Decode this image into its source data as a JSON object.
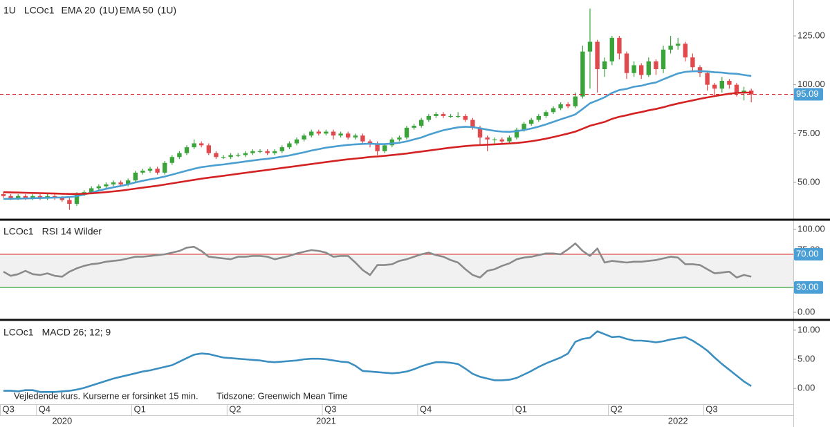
{
  "chart_data": [
    {
      "type": "candlestick",
      "header": [
        "1U",
        "LCOc1"
      ],
      "header_colors": [
        "#111111",
        "#111111"
      ],
      "up_color": "#3aa33a",
      "down_color": "#e0494d",
      "open": [
        44,
        43,
        42,
        43,
        42,
        43,
        42,
        43,
        42,
        41,
        39,
        44,
        45,
        47,
        48,
        49,
        50,
        49,
        51,
        55,
        56,
        57,
        55,
        60,
        63,
        65,
        68,
        70,
        69,
        65,
        63,
        63,
        64,
        64,
        65,
        66,
        66,
        65,
        66,
        68,
        70,
        72,
        74,
        76,
        75,
        76,
        74,
        75,
        73,
        74,
        71,
        70,
        66,
        69,
        72,
        73,
        78,
        79,
        82,
        84,
        85,
        84,
        84,
        84,
        82,
        78,
        73,
        72,
        72,
        71,
        73,
        77,
        80,
        82,
        84,
        86,
        88,
        90,
        89,
        94,
        117,
        122,
        108,
        112,
        124,
        116,
        106,
        110,
        105,
        112,
        108,
        118,
        120,
        121,
        114,
        109,
        106,
        100,
        98,
        102,
        100,
        96,
        97
      ],
      "high": [
        45,
        44,
        44,
        44,
        44,
        44,
        44,
        44,
        43,
        42,
        45,
        46,
        48,
        49,
        50,
        51,
        51,
        52,
        56,
        57,
        58,
        58,
        61,
        64,
        66,
        69,
        72,
        71,
        70,
        66,
        64,
        65,
        65,
        66,
        67,
        67,
        67,
        67,
        69,
        71,
        73,
        75,
        77,
        77,
        77,
        77,
        76,
        76,
        75,
        75,
        72,
        71,
        70,
        73,
        74,
        79,
        80,
        83,
        85,
        86,
        86,
        85,
        86,
        85,
        83,
        79,
        74,
        73,
        73,
        74,
        78,
        81,
        83,
        85,
        87,
        89,
        91,
        91,
        96,
        120,
        139,
        123,
        114,
        125,
        125,
        117,
        112,
        111,
        114,
        113,
        120,
        125,
        124,
        122,
        116,
        110,
        107,
        101,
        104,
        103,
        101,
        99,
        98
      ],
      "low": [
        42,
        41,
        41,
        41,
        41,
        41,
        41,
        41,
        40,
        36,
        38,
        43,
        44,
        46,
        47,
        48,
        48,
        48,
        50,
        54,
        55,
        54,
        54,
        59,
        62,
        64,
        67,
        68,
        64,
        62,
        62,
        62,
        63,
        63,
        64,
        65,
        64,
        64,
        65,
        67,
        69,
        71,
        73,
        74,
        74,
        72,
        73,
        72,
        72,
        70,
        68,
        64,
        65,
        68,
        71,
        72,
        77,
        78,
        81,
        83,
        83,
        83,
        83,
        81,
        77,
        69,
        66,
        70,
        70,
        70,
        72,
        76,
        79,
        81,
        83,
        85,
        87,
        88,
        88,
        93,
        98,
        96,
        104,
        110,
        113,
        103,
        104,
        103,
        104,
        105,
        106,
        116,
        118,
        112,
        107,
        104,
        97,
        94,
        96,
        98,
        94,
        92,
        91
      ],
      "close": [
        43,
        42,
        43,
        42,
        43,
        42,
        43,
        42,
        41,
        39,
        44,
        45,
        47,
        48,
        49,
        50,
        49,
        51,
        55,
        56,
        57,
        55,
        60,
        63,
        65,
        68,
        70,
        69,
        65,
        63,
        63,
        64,
        64,
        65,
        66,
        66,
        65,
        66,
        68,
        70,
        72,
        74,
        76,
        75,
        76,
        74,
        75,
        73,
        74,
        71,
        70,
        66,
        69,
        72,
        73,
        78,
        79,
        82,
        84,
        85,
        84,
        84,
        84,
        82,
        78,
        73,
        72,
        72,
        71,
        73,
        77,
        80,
        82,
        84,
        86,
        88,
        90,
        89,
        94,
        117,
        122,
        108,
        112,
        124,
        116,
        106,
        110,
        105,
        112,
        108,
        118,
        120,
        121,
        114,
        109,
        106,
        100,
        98,
        102,
        100,
        96,
        97,
        95.09
      ],
      "series": [
        {
          "name": "EMA 20",
          "period": "(1U)",
          "color": "#4a9fd0",
          "values": [
            41.5,
            41.6,
            41.7,
            41.8,
            41.9,
            42,
            42.1,
            42.2,
            42.3,
            42.5,
            43,
            43.8,
            44.8,
            45.8,
            46.7,
            47.5,
            48.2,
            49,
            50,
            50.8,
            51.6,
            52.2,
            53,
            54,
            55,
            56,
            57,
            57.8,
            58.3,
            58.8,
            59.2,
            59.7,
            60.2,
            60.7,
            61.2,
            61.7,
            62.1,
            62.6,
            63.2,
            63.8,
            64.6,
            65.4,
            66.3,
            67,
            67.8,
            68.3,
            68.8,
            69.2,
            69.5,
            69.7,
            69.8,
            69.6,
            69.6,
            69.9,
            70.3,
            71,
            72,
            73,
            74.4,
            75.6,
            76.7,
            77.5,
            78.2,
            78.5,
            78.3,
            77.7,
            77,
            76.4,
            76,
            75.9,
            76.2,
            76.8,
            77.6,
            78.6,
            79.7,
            81,
            82.3,
            83.5,
            84.8,
            87.6,
            90.5,
            92,
            93.6,
            95.8,
            97.3,
            97.9,
            99,
            99.5,
            100.5,
            101.2,
            102.8,
            104.3,
            105.8,
            106.6,
            106.9,
            107,
            106.8,
            106.4,
            106.2,
            105.8,
            105.6,
            105,
            104.5
          ]
        },
        {
          "name": "EMA 50",
          "period": "(1U)",
          "color": "#d42222",
          "values": [
            45,
            44.9,
            44.8,
            44.7,
            44.6,
            44.5,
            44.4,
            44.3,
            44.2,
            44.1,
            44.1,
            44.2,
            44.4,
            44.7,
            45,
            45.4,
            45.8,
            46.3,
            46.8,
            47.3,
            47.8,
            48.3,
            48.9,
            49.5,
            50.1,
            50.7,
            51.3,
            51.9,
            52.4,
            52.9,
            53.4,
            53.9,
            54.4,
            54.9,
            55.4,
            55.9,
            56.4,
            56.9,
            57.4,
            57.9,
            58.4,
            58.9,
            59.4,
            59.9,
            60.4,
            60.9,
            61.4,
            61.8,
            62.2,
            62.6,
            63,
            63.3,
            63.6,
            64,
            64.4,
            64.8,
            65.3,
            65.8,
            66.3,
            66.8,
            67.3,
            67.8,
            68.2,
            68.6,
            68.9,
            69.1,
            69.3,
            69.5,
            69.7,
            69.9,
            70.2,
            70.6,
            71.1,
            71.7,
            72.4,
            73.2,
            74.1,
            75,
            76,
            77.5,
            79,
            80,
            81,
            82.5,
            83.6,
            84.4,
            85.3,
            86,
            86.9,
            87.6,
            88.5,
            89.5,
            90.4,
            91.2,
            92,
            92.8,
            93.5,
            94.2,
            94.8,
            95.4,
            95.8,
            96,
            96
          ]
        }
      ],
      "last_price": 95.09,
      "last_price_color": "#4a9fd6",
      "ylim": [
        31.6,
        143.4
      ],
      "yticks": [
        {
          "value": 50,
          "label": "50.00"
        },
        {
          "value": 75,
          "label": "75.00"
        },
        {
          "value": 100,
          "label": "100.00"
        },
        {
          "value": 125,
          "label": "125.00"
        }
      ]
    },
    {
      "type": "line",
      "header": [
        "LCOc1",
        "RSI 14 Wilder"
      ],
      "header_colors": [
        "#111111",
        "#8a8a8a"
      ],
      "series": [
        {
          "name": null,
          "color": "#8a8a8a",
          "values": [
            49,
            44,
            46,
            50,
            46,
            45,
            47,
            44,
            43,
            49,
            53,
            56,
            58,
            59,
            61,
            62,
            63,
            65,
            67,
            67,
            68,
            69,
            70,
            72,
            74,
            78,
            79,
            74,
            67,
            66,
            65,
            64,
            67,
            67,
            68,
            68,
            67,
            64,
            66,
            68,
            71,
            73,
            75,
            74,
            72,
            67,
            68,
            68,
            60,
            51,
            45,
            57,
            57,
            58,
            62,
            64,
            67,
            70,
            72,
            69,
            67,
            63,
            60,
            52,
            45,
            42,
            50,
            52,
            56,
            59,
            64,
            66,
            67,
            69,
            71,
            71,
            70,
            76,
            83,
            74,
            68,
            77,
            60,
            62,
            61,
            60,
            61,
            61,
            62,
            63,
            65,
            67,
            66,
            58,
            58,
            57,
            52,
            47,
            48,
            49,
            42,
            45,
            43
          ]
        }
      ],
      "levels": [
        {
          "value": 70,
          "label": "70.00",
          "color": "#e05050"
        },
        {
          "value": 30,
          "label": "30.00",
          "color": "#3aa03a"
        }
      ],
      "band_color": "#f1f1f1",
      "tag_color": "#4a9fd6",
      "ylim": [
        -8.3,
        110
      ],
      "yticks": [
        {
          "value": 0,
          "label": "0.00"
        },
        {
          "value": 75,
          "label": "75.00"
        },
        {
          "value": 100,
          "label": "100.00"
        }
      ]
    },
    {
      "type": "line",
      "header": [
        "LCOc1",
        "MACD 26; 12; 9"
      ],
      "header_colors": [
        "#111111",
        "#111111"
      ],
      "series": [
        {
          "name": null,
          "color": "#3a8ec0",
          "values": [
            -0.4,
            -0.4,
            -0.5,
            -0.3,
            -0.3,
            -0.6,
            -0.6,
            -0.6,
            -0.5,
            -0.4,
            -0.2,
            0.1,
            0.5,
            0.9,
            1.3,
            1.7,
            2.0,
            2.3,
            2.6,
            2.9,
            3.1,
            3.4,
            3.7,
            4.0,
            4.6,
            5.2,
            5.8,
            6.0,
            5.9,
            5.6,
            5.3,
            5.2,
            5.1,
            5.0,
            4.9,
            4.8,
            4.6,
            4.5,
            4.6,
            4.7,
            4.8,
            5.0,
            5.1,
            5.1,
            5.0,
            4.8,
            4.6,
            4.5,
            3.9,
            3.0,
            2.9,
            2.8,
            2.7,
            2.6,
            2.7,
            2.9,
            3.3,
            3.8,
            4.2,
            4.5,
            4.5,
            4.4,
            4.2,
            3.4,
            2.5,
            2.0,
            1.7,
            1.4,
            1.4,
            1.5,
            1.8,
            2.4,
            3.0,
            3.7,
            4.3,
            4.8,
            5.3,
            6.0,
            8.0,
            8.5,
            8.7,
            9.8,
            9.3,
            8.8,
            8.9,
            8.5,
            8.2,
            8.2,
            8.1,
            7.9,
            8.1,
            8.4,
            8.6,
            8.8,
            8.2,
            7.4,
            6.5,
            5.3,
            4.2,
            3.2,
            2.2,
            1.2,
            0.4
          ]
        }
      ],
      "footnotes": [
        "Vejledende kurs. Kurserne er forsinket 15 min.",
        "Tidszone: Greenwich Mean Time"
      ],
      "ylim": [
        -2.7,
        11.4
      ],
      "yticks": [
        {
          "value": 0,
          "label": "0.00"
        },
        {
          "value": 5,
          "label": "5.00"
        },
        {
          "value": 10,
          "label": "10.00"
        }
      ],
      "categories": [
        "Q3",
        null,
        null,
        null,
        null,
        "Q4",
        null,
        null,
        null,
        null,
        null,
        null,
        null,
        null,
        null,
        null,
        null,
        null,
        "Q1",
        null,
        null,
        null,
        null,
        null,
        null,
        null,
        null,
        null,
        null,
        null,
        null,
        "Q2",
        null,
        null,
        null,
        null,
        null,
        null,
        null,
        null,
        null,
        null,
        null,
        null,
        "Q3",
        null,
        null,
        null,
        null,
        null,
        null,
        null,
        null,
        null,
        null,
        null,
        null,
        "Q4",
        null,
        null,
        null,
        null,
        null,
        null,
        null,
        null,
        null,
        null,
        null,
        null,
        "Q1",
        null,
        null,
        null,
        null,
        null,
        null,
        null,
        null,
        null,
        null,
        null,
        null,
        "Q2",
        null,
        null,
        null,
        null,
        null,
        null,
        null,
        null,
        null,
        null,
        null,
        null,
        "Q3",
        null,
        null,
        null,
        null,
        null,
        null
      ],
      "year_labels": [
        null,
        null,
        null,
        null,
        null,
        null,
        null,
        null,
        "2020",
        null,
        null,
        null,
        null,
        null,
        null,
        null,
        null,
        null,
        null,
        null,
        null,
        null,
        null,
        null,
        null,
        null,
        null,
        null,
        null,
        null,
        null,
        null,
        null,
        null,
        null,
        null,
        null,
        null,
        null,
        null,
        null,
        null,
        null,
        null,
        "2021",
        null,
        null,
        null,
        null,
        null,
        null,
        null,
        null,
        null,
        null,
        null,
        null,
        null,
        null,
        null,
        null,
        null,
        null,
        null,
        null,
        null,
        null,
        null,
        null,
        null,
        null,
        null,
        null,
        null,
        null,
        null,
        null,
        null,
        null,
        null,
        null,
        null,
        null,
        null,
        null,
        null,
        null,
        null,
        null,
        null,
        null,
        null,
        "2022",
        null,
        null,
        null,
        null,
        null,
        null,
        null,
        null,
        null,
        null
      ]
    }
  ]
}
